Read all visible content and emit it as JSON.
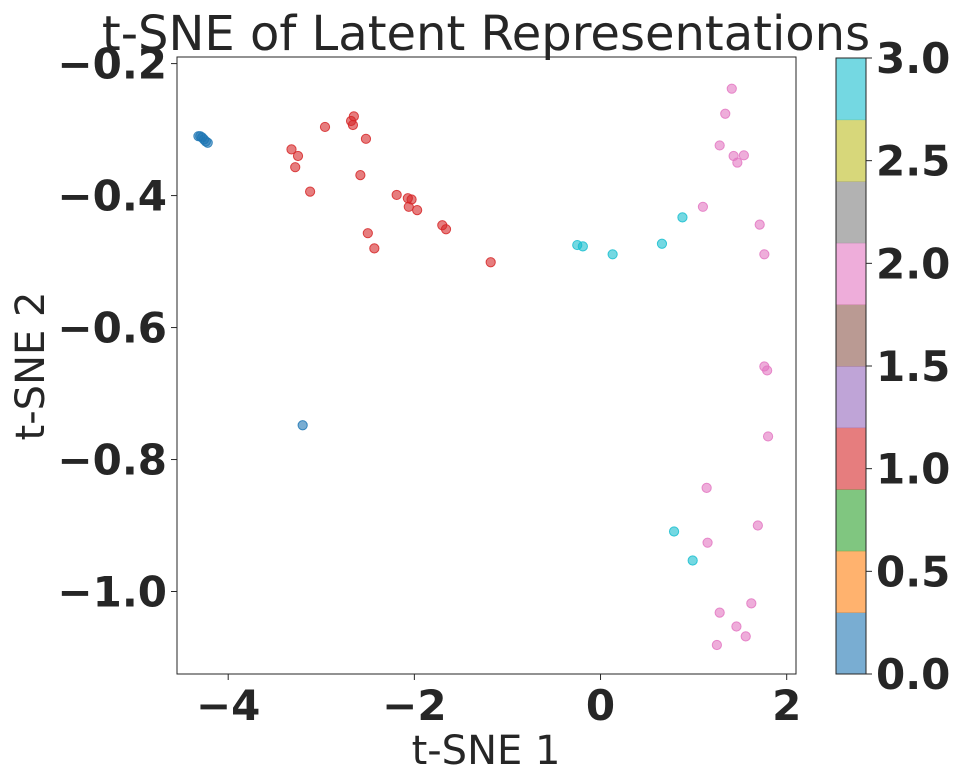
{
  "chart_data": {
    "type": "scatter",
    "title": "t-SNE of Latent Representations",
    "xlabel": "t-SNE 1",
    "ylabel": "t-SNE 2",
    "xlim": [
      -4.55,
      2.1
    ],
    "ylim": [
      -1.125,
      -0.19
    ],
    "xticks": [
      -4,
      -2,
      0,
      2
    ],
    "xtick_labels": [
      "−4",
      "−2",
      "0",
      "2"
    ],
    "yticks": [
      -0.2,
      -0.4,
      -0.6,
      -0.8,
      -1.0
    ],
    "ytick_labels": [
      "−0.2",
      "−0.4",
      "−0.6",
      "−0.8",
      "−1.0"
    ],
    "grid": false,
    "colorbar": {
      "range": [
        0.0,
        3.0
      ],
      "ticks": [
        0.0,
        0.5,
        1.0,
        1.5,
        2.0,
        2.5,
        3.0
      ],
      "tick_labels": [
        "0.0",
        "0.5",
        "1.0",
        "1.5",
        "2.0",
        "2.5",
        "3.0"
      ],
      "segment_colors": [
        "#1f77b4",
        "#ff7f0e",
        "#2ca02c",
        "#d62728",
        "#9467bd",
        "#8c564b",
        "#e377c2",
        "#7f7f7f",
        "#bcbd22",
        "#17becf"
      ]
    },
    "series": [
      {
        "label_value": 0.0,
        "color": "#1f77b4",
        "points": [
          [
            -4.32,
            -0.31
          ],
          [
            -4.3,
            -0.31
          ],
          [
            -4.28,
            -0.312
          ],
          [
            -4.26,
            -0.315
          ],
          [
            -4.24,
            -0.318
          ],
          [
            -4.22,
            -0.32
          ],
          [
            -3.2,
            -0.748
          ]
        ]
      },
      {
        "label_value": 1.0,
        "color": "#d62728",
        "points": [
          [
            -3.32,
            -0.33
          ],
          [
            -3.25,
            -0.34
          ],
          [
            -3.28,
            -0.357
          ],
          [
            -3.12,
            -0.394
          ],
          [
            -2.96,
            -0.296
          ],
          [
            -2.68,
            -0.287
          ],
          [
            -2.65,
            -0.28
          ],
          [
            -2.66,
            -0.293
          ],
          [
            -2.52,
            -0.314
          ],
          [
            -2.58,
            -0.369
          ],
          [
            -2.5,
            -0.457
          ],
          [
            -2.43,
            -0.48
          ],
          [
            -2.19,
            -0.399
          ],
          [
            -2.07,
            -0.404
          ],
          [
            -2.03,
            -0.406
          ],
          [
            -2.06,
            -0.417
          ],
          [
            -1.97,
            -0.422
          ],
          [
            -1.7,
            -0.445
          ],
          [
            -1.66,
            -0.451
          ],
          [
            -1.18,
            -0.501
          ]
        ]
      },
      {
        "label_value": 2.0,
        "color": "#e377c2",
        "points": [
          [
            1.41,
            -0.238
          ],
          [
            1.34,
            -0.276
          ],
          [
            1.28,
            -0.324
          ],
          [
            1.43,
            -0.34
          ],
          [
            1.47,
            -0.35
          ],
          [
            1.54,
            -0.339
          ],
          [
            1.1,
            -0.417
          ],
          [
            1.71,
            -0.444
          ],
          [
            1.76,
            -0.489
          ],
          [
            1.76,
            -0.659
          ],
          [
            1.79,
            -0.665
          ],
          [
            1.8,
            -0.765
          ],
          [
            1.14,
            -0.843
          ],
          [
            1.69,
            -0.9
          ],
          [
            1.15,
            -0.926
          ],
          [
            1.62,
            -1.018
          ],
          [
            1.28,
            -1.032
          ],
          [
            1.46,
            -1.053
          ],
          [
            1.56,
            -1.068
          ],
          [
            1.25,
            -1.081
          ]
        ]
      },
      {
        "label_value": 3.0,
        "color": "#17becf",
        "points": [
          [
            -0.25,
            -0.475
          ],
          [
            -0.19,
            -0.477
          ],
          [
            0.13,
            -0.489
          ],
          [
            0.66,
            -0.473
          ],
          [
            0.88,
            -0.433
          ],
          [
            0.79,
            -0.909
          ],
          [
            0.99,
            -0.953
          ]
        ]
      }
    ]
  }
}
